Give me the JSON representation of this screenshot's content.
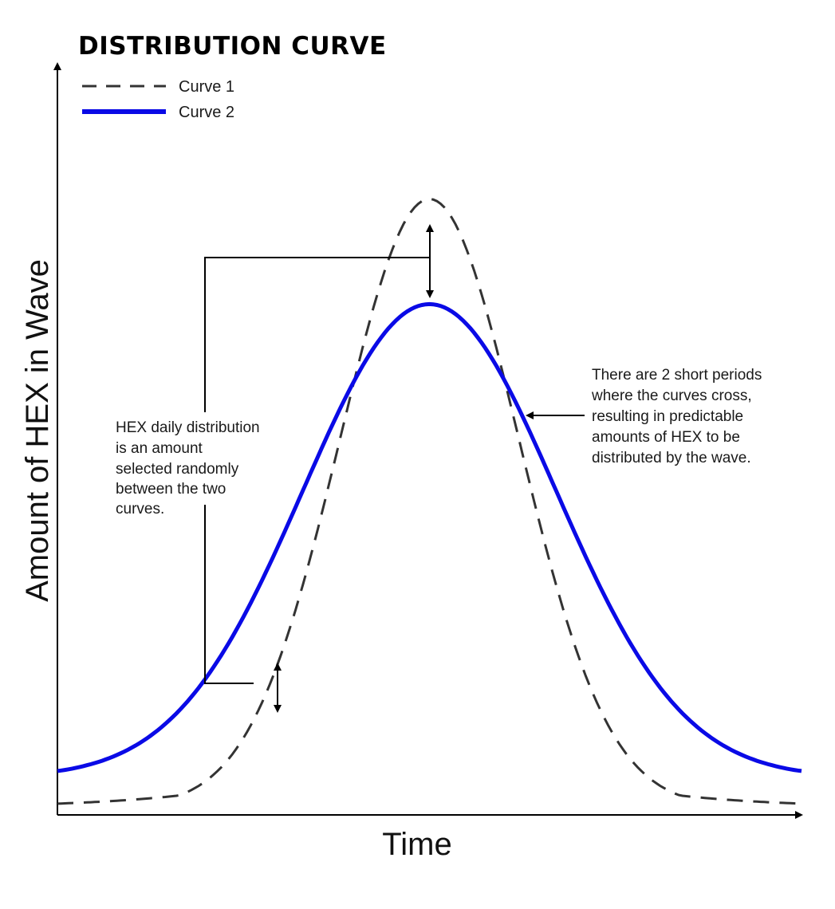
{
  "chart_data": {
    "type": "line",
    "title": "DISTRIBUTION CURVE",
    "xlabel": "Time",
    "ylabel": "Amount of HEX in Wave",
    "grid": false,
    "legend": {
      "placement": "top-left"
    },
    "series": [
      {
        "name": "Curve 1",
        "style": "dashed",
        "color": "#333333",
        "shape": {
          "baseline": 1,
          "peak": 82,
          "peak_x": 50,
          "width": 12,
          "tail_decay": 14
        }
      },
      {
        "name": "Curve 2",
        "style": "solid",
        "color": "#0a0ae6",
        "shape": {
          "baseline": 5,
          "peak": 68,
          "peak_x": 50,
          "width": 17,
          "tail_decay": 18
        }
      }
    ],
    "annotations": [
      {
        "id": "left-note",
        "lines": [
          "HEX daily distribution",
          "is an amount",
          "selected randomly",
          "between the two",
          "curves."
        ]
      },
      {
        "id": "right-note",
        "lines": [
          "There are 2 short periods",
          "where the curves cross,",
          "resulting in predictable",
          "amounts of HEX to be",
          "distributed by the wave."
        ]
      }
    ]
  }
}
